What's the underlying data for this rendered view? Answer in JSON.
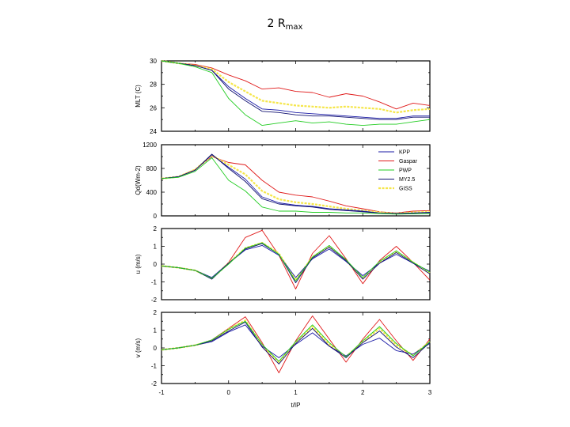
{
  "title": {
    "main": "2 R",
    "sub": "max"
  },
  "colors": {
    "KPP": "#1a1aa6",
    "Gaspar": "#e01b1b",
    "PWP": "#22cc22",
    "MY2.5": "#101070",
    "GISS": "#f5e64a"
  },
  "chart_data": {
    "type": "line",
    "shared_x": {
      "label": "t/IP",
      "range": [
        -1,
        3
      ],
      "ticks": [
        "-1",
        "0",
        "1",
        "2",
        "3"
      ],
      "x": [
        -1,
        -0.75,
        -0.5,
        -0.25,
        0,
        0.25,
        0.5,
        0.75,
        1,
        1.25,
        1.5,
        1.75,
        2,
        2.25,
        2.5,
        2.75,
        3
      ]
    },
    "legend": {
      "placement": "top-right of panel 2",
      "entries": [
        "KPP",
        "Gaspar",
        "PWP",
        "MY2.5",
        "GISS"
      ]
    },
    "panels": [
      {
        "name": "mlt",
        "ylabel": "MLT (C)",
        "ylim": [
          24,
          30
        ],
        "yticks": [
          "24",
          "26",
          "28",
          "30"
        ],
        "series": [
          {
            "name": "Gaspar",
            "values": [
              30,
              29.8,
              29.7,
              29.4,
              28.8,
              28.3,
              27.6,
              27.7,
              27.4,
              27.3,
              26.9,
              27.2,
              27.0,
              26.5,
              25.9,
              26.4,
              26.2
            ]
          },
          {
            "name": "GISS",
            "values": [
              30,
              29.8,
              29.6,
              29.3,
              28.2,
              27.4,
              26.6,
              26.4,
              26.2,
              26.1,
              26.0,
              26.1,
              26.0,
              25.9,
              25.6,
              25.8,
              25.9
            ]
          },
          {
            "name": "KPP",
            "values": [
              30,
              29.8,
              29.6,
              29.2,
              27.8,
              26.8,
              25.9,
              25.8,
              25.6,
              25.5,
              25.4,
              25.3,
              25.2,
              25.1,
              25.1,
              25.3,
              25.3
            ]
          },
          {
            "name": "MY2.5",
            "values": [
              30,
              29.8,
              29.6,
              29.2,
              27.6,
              26.6,
              25.7,
              25.6,
              25.4,
              25.3,
              25.3,
              25.2,
              25.1,
              25.0,
              25.0,
              25.2,
              25.2
            ]
          },
          {
            "name": "PWP",
            "values": [
              30,
              29.8,
              29.5,
              29.0,
              26.8,
              25.4,
              24.5,
              24.7,
              24.9,
              24.7,
              24.8,
              24.6,
              24.5,
              24.6,
              24.6,
              24.8,
              25.0
            ]
          }
        ]
      },
      {
        "name": "heat",
        "ylabel": "Qd(Wm-2)",
        "ylim": [
          0,
          1200
        ],
        "yticks": [
          "0",
          "400",
          "800",
          "1200"
        ],
        "series": [
          {
            "name": "Gaspar",
            "values": [
              630,
              660,
              780,
              1000,
              900,
              860,
              600,
              400,
              350,
              320,
              250,
              170,
              120,
              70,
              50,
              80,
              90
            ]
          },
          {
            "name": "GISS",
            "values": [
              630,
              660,
              780,
              1020,
              860,
              700,
              420,
              280,
              230,
              200,
              160,
              120,
              90,
              60,
              40,
              60,
              70
            ]
          },
          {
            "name": "KPP",
            "values": [
              630,
              660,
              770,
              1030,
              820,
              620,
              320,
              220,
              180,
              160,
              120,
              100,
              80,
              50,
              40,
              50,
              60
            ]
          },
          {
            "name": "MY2.5",
            "values": [
              630,
              660,
              770,
              1040,
              800,
              580,
              290,
              200,
              170,
              150,
              110,
              90,
              70,
              45,
              35,
              45,
              55
            ]
          },
          {
            "name": "PWP",
            "values": [
              630,
              650,
              750,
              980,
              600,
              420,
              150,
              80,
              80,
              60,
              60,
              50,
              50,
              40,
              30,
              35,
              40
            ]
          }
        ]
      },
      {
        "name": "u",
        "ylabel": "u (m/s)",
        "ylim": [
          -2,
          2
        ],
        "yticks": [
          "-2",
          "-1",
          "0",
          "1",
          "2"
        ],
        "series": [
          {
            "name": "Gaspar",
            "values": [
              -0.1,
              -0.2,
              -0.35,
              -0.8,
              0.1,
              1.5,
              1.9,
              0.5,
              -1.4,
              0.6,
              1.6,
              0.3,
              -1.1,
              0.2,
              1.0,
              0.1,
              -0.9
            ]
          },
          {
            "name": "GISS",
            "values": [
              -0.1,
              -0.2,
              -0.35,
              -0.8,
              0.05,
              0.9,
              1.2,
              0.6,
              -0.9,
              0.4,
              1.0,
              0.2,
              -0.8,
              0.1,
              0.7,
              0.1,
              -0.5
            ]
          },
          {
            "name": "KPP",
            "values": [
              -0.1,
              -0.2,
              -0.35,
              -0.75,
              0.05,
              0.8,
              1.05,
              0.5,
              -0.75,
              0.3,
              0.85,
              0.15,
              -0.65,
              0.05,
              0.55,
              0.05,
              -0.4
            ]
          },
          {
            "name": "MY2.5",
            "values": [
              -0.1,
              -0.2,
              -0.35,
              -0.85,
              0.05,
              0.85,
              1.15,
              0.55,
              -1.05,
              0.35,
              0.95,
              0.2,
              -0.85,
              0.05,
              0.65,
              0.05,
              -0.55
            ]
          },
          {
            "name": "PWP",
            "values": [
              -0.1,
              -0.2,
              -0.35,
              -0.8,
              0.0,
              0.9,
              1.2,
              0.55,
              -0.95,
              0.4,
              1.05,
              0.25,
              -0.75,
              0.15,
              0.75,
              0.1,
              -0.45
            ]
          }
        ]
      },
      {
        "name": "v",
        "ylabel": "v (m/s)",
        "ylim": [
          -2,
          2
        ],
        "yticks": [
          "-2",
          "-1",
          "0",
          "1",
          "2"
        ],
        "series": [
          {
            "name": "Gaspar",
            "values": [
              -0.1,
              0.0,
              0.15,
              0.45,
              1.1,
              1.75,
              0.3,
              -1.4,
              0.4,
              1.8,
              0.5,
              -0.8,
              0.5,
              1.6,
              0.4,
              -0.7,
              0.5
            ]
          },
          {
            "name": "GISS",
            "values": [
              -0.1,
              0.0,
              0.15,
              0.4,
              1.05,
              1.55,
              0.15,
              -0.8,
              0.3,
              1.2,
              0.2,
              -0.5,
              0.35,
              1.1,
              0.15,
              -0.4,
              0.35
            ]
          },
          {
            "name": "KPP",
            "values": [
              -0.1,
              0.0,
              0.15,
              0.35,
              0.9,
              1.3,
              0.1,
              -0.55,
              0.2,
              0.85,
              0.1,
              -0.45,
              0.2,
              0.55,
              -0.15,
              -0.35,
              0.25
            ]
          },
          {
            "name": "MY2.5",
            "values": [
              -0.1,
              0.0,
              0.15,
              0.4,
              0.95,
              1.45,
              0.05,
              -0.9,
              0.25,
              1.1,
              0.1,
              -0.55,
              0.3,
              0.95,
              0.05,
              -0.55,
              0.3
            ]
          },
          {
            "name": "PWP",
            "values": [
              -0.1,
              0.0,
              0.15,
              0.45,
              1.05,
              1.5,
              0.2,
              -0.75,
              0.35,
              1.3,
              0.3,
              -0.5,
              0.4,
              1.2,
              0.25,
              -0.45,
              0.35
            ]
          }
        ]
      }
    ]
  }
}
